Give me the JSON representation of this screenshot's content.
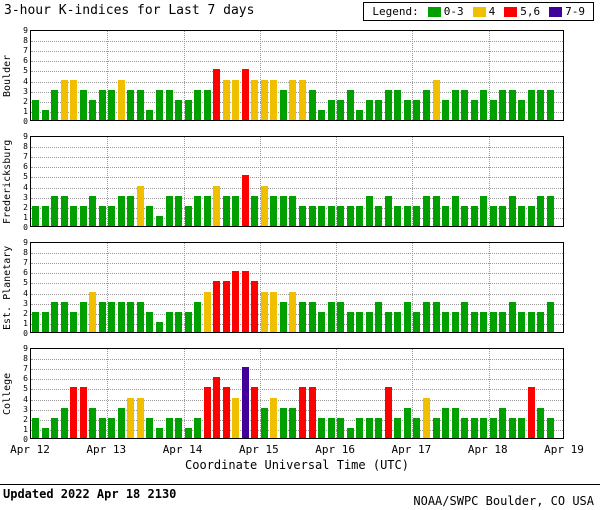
{
  "title": "3-hour K-indices for Last 7 days",
  "legend": {
    "label": "Legend:"
  },
  "chart_data": {
    "type": "bar",
    "days": 7,
    "bars_per_day": 8,
    "x_tick_labels": [
      "Apr 12",
      "Apr 13",
      "Apr 14",
      "Apr 15",
      "Apr 16",
      "Apr 17",
      "Apr 18",
      "Apr 19"
    ],
    "xlabel": "Coordinate Universal Time (UTC)",
    "ylim": [
      0,
      9
    ],
    "y_ticks": [
      0,
      1,
      2,
      3,
      4,
      5,
      6,
      7,
      8,
      9
    ],
    "grid": true,
    "legend_position": "top-right",
    "color_scale": [
      {
        "label": "0-3",
        "max": 3,
        "color": "#00A000"
      },
      {
        "label": "4",
        "max": 4,
        "color": "#F0C000"
      },
      {
        "label": "5,6",
        "max": 6,
        "color": "#FF0000"
      },
      {
        "label": "7-9",
        "max": 9,
        "color": "#400099"
      }
    ],
    "series": [
      {
        "name": "Boulder",
        "values": [
          2,
          1,
          3,
          4,
          4,
          3,
          2,
          3,
          3,
          4,
          3,
          3,
          1,
          3,
          3,
          2,
          2,
          3,
          3,
          5,
          4,
          4,
          5,
          4,
          4,
          4,
          3,
          4,
          4,
          3,
          1,
          2,
          2,
          3,
          1,
          2,
          2,
          3,
          3,
          2,
          2,
          3,
          4,
          2,
          3,
          3,
          2,
          3,
          2,
          3,
          3,
          2,
          3,
          3,
          3
        ]
      },
      {
        "name": "Fredericksburg",
        "values": [
          2,
          2,
          3,
          3,
          2,
          2,
          3,
          2,
          2,
          3,
          3,
          4,
          2,
          1,
          3,
          3,
          2,
          3,
          3,
          4,
          3,
          3,
          5,
          3,
          4,
          3,
          3,
          3,
          2,
          2,
          2,
          2,
          2,
          2,
          2,
          3,
          2,
          3,
          2,
          2,
          2,
          3,
          3,
          2,
          3,
          2,
          2,
          3,
          2,
          2,
          3,
          2,
          2,
          3,
          3
        ]
      },
      {
        "name": "Est. Planetary",
        "values": [
          2,
          2,
          3,
          3,
          2,
          3,
          4,
          3,
          3,
          3,
          3,
          3,
          2,
          1,
          2,
          2,
          2,
          3,
          4,
          5,
          5,
          6,
          6,
          5,
          4,
          4,
          3,
          4,
          3,
          3,
          2,
          3,
          3,
          2,
          2,
          2,
          3,
          2,
          2,
          3,
          2,
          3,
          3,
          2,
          2,
          3,
          2,
          2,
          2,
          2,
          3,
          2,
          2,
          2,
          3
        ]
      },
      {
        "name": "College",
        "values": [
          2,
          1,
          2,
          3,
          5,
          5,
          3,
          2,
          2,
          3,
          4,
          4,
          2,
          1,
          2,
          2,
          1,
          2,
          5,
          6,
          5,
          4,
          7,
          5,
          3,
          4,
          3,
          3,
          5,
          5,
          2,
          2,
          2,
          1,
          2,
          2,
          2,
          5,
          2,
          3,
          2,
          4,
          2,
          3,
          3,
          2,
          2,
          2,
          2,
          3,
          2,
          2,
          5,
          3,
          2
        ]
      }
    ]
  },
  "footer": {
    "updated": "Updated 2022 Apr 18 2130",
    "source": "NOAA/SWPC Boulder, CO USA"
  }
}
